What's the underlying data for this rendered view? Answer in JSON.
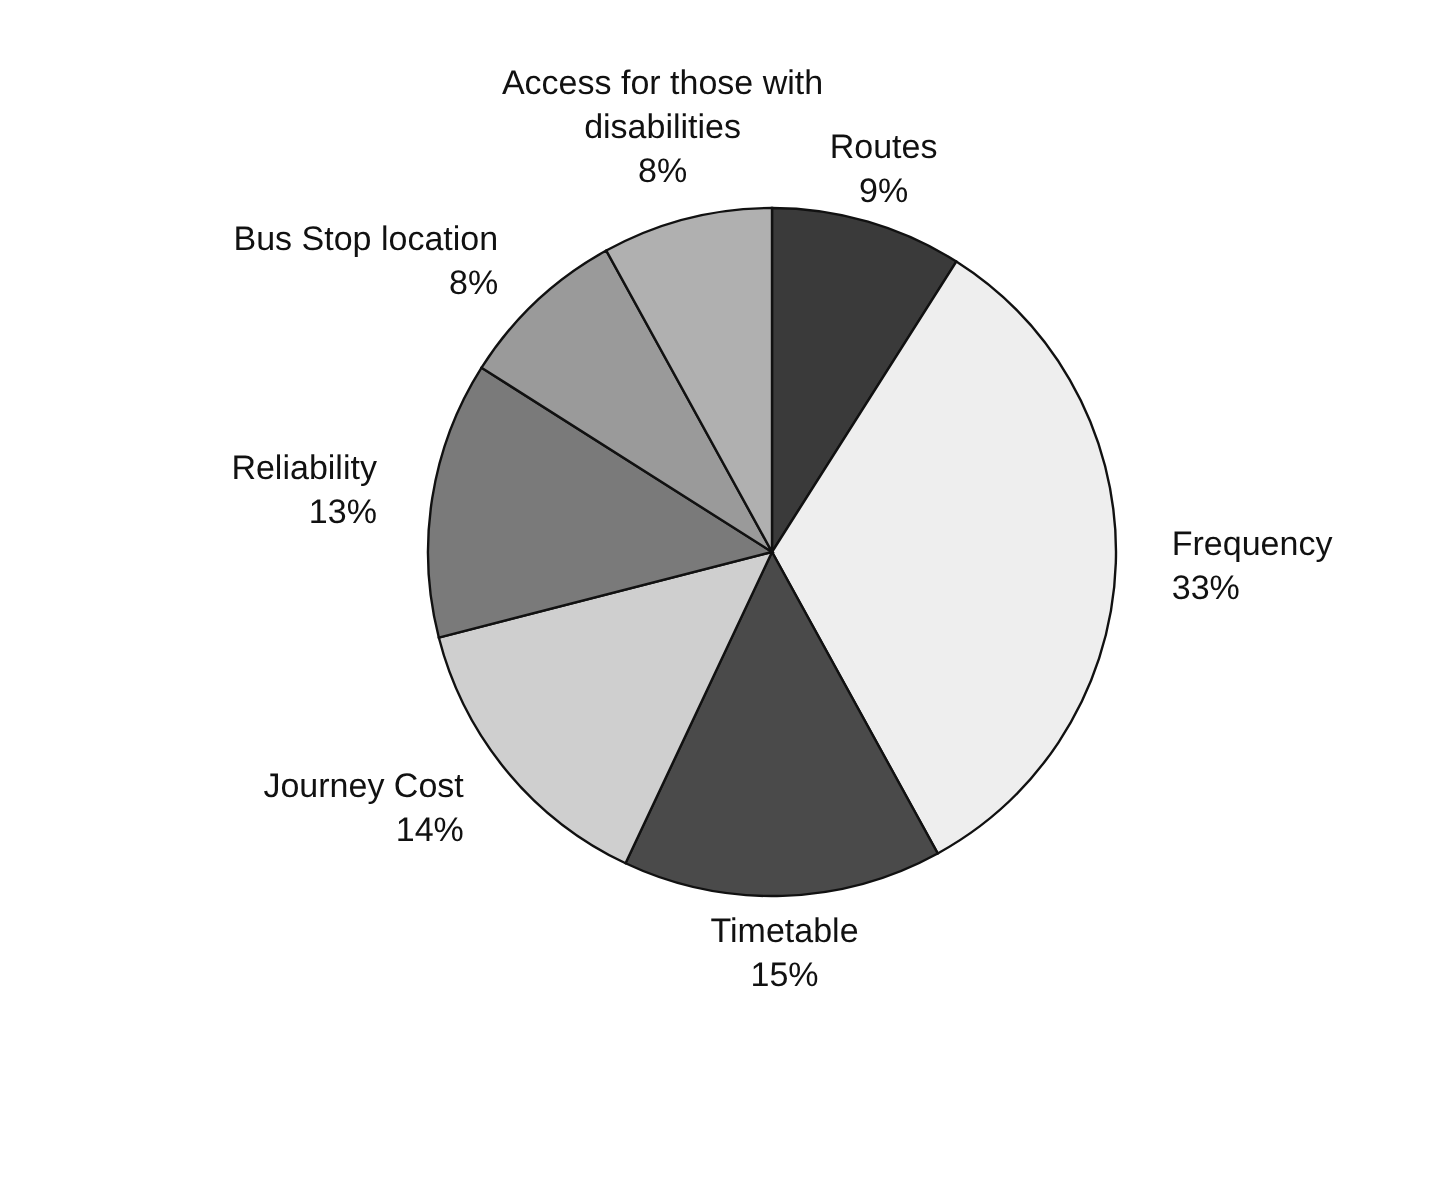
{
  "chart_data": {
    "type": "pie",
    "categories": [
      "Routes",
      "Frequency",
      "Timetable",
      "Journey Cost",
      "Reliability",
      "Bus Stop location",
      "Access for those with disabilities"
    ],
    "values": [
      9,
      33,
      15,
      14,
      13,
      8,
      8
    ],
    "value_labels": [
      "9%",
      "33%",
      "15%",
      "14%",
      "13%",
      "8%",
      "8%"
    ],
    "colors": [
      "#3a3a3a",
      "#eeeeee",
      "#4a4a4a",
      "#cfcfcf",
      "#7a7a7a",
      "#9a9a9a",
      "#b0b0b0"
    ]
  }
}
